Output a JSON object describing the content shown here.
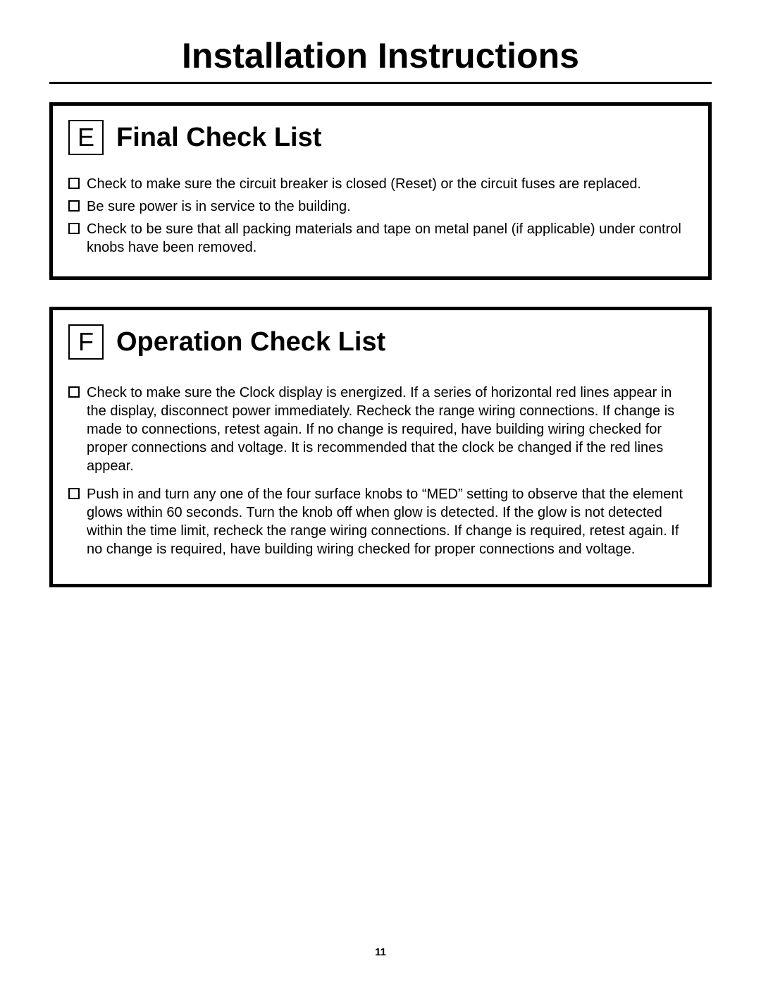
{
  "page_title": "Installation Instructions",
  "page_number": "11",
  "colors": {
    "background": "#ffffff",
    "text": "#000000",
    "border": "#000000"
  },
  "typography": {
    "page_title_fontsize": 50,
    "section_letter_fontsize": 36,
    "section_title_fontsize": 38,
    "body_fontsize": 20,
    "page_number_fontsize": 15
  },
  "sections": [
    {
      "letter": "E",
      "title": "Final Check List",
      "items": [
        "Check to make sure the circuit breaker is closed (Reset) or the circuit fuses are replaced.",
        "Be sure power is in service to the building.",
        "Check to be sure that all packing materials and tape on metal panel (if applicable) under control knobs have been removed."
      ]
    },
    {
      "letter": "F",
      "title": "Operation Check List",
      "items": [
        "Check to make sure the Clock display is energized. If a series of horizontal red lines appear in the display, disconnect power immediately. Recheck the range wiring connections. If change is made to connections, retest again. If no change is required, have building wiring checked for proper connections and voltage. It is recommended that the clock be changed if the red lines appear.",
        "Push in and turn any one of the four surface knobs to “MED” setting to observe that the element glows within 60 seconds. Turn the knob off when glow is detected. If the glow is not detected within the time limit, recheck the range wiring connections. If change is required, retest again. If no change is required, have building wiring checked for proper connections and voltage."
      ]
    }
  ]
}
